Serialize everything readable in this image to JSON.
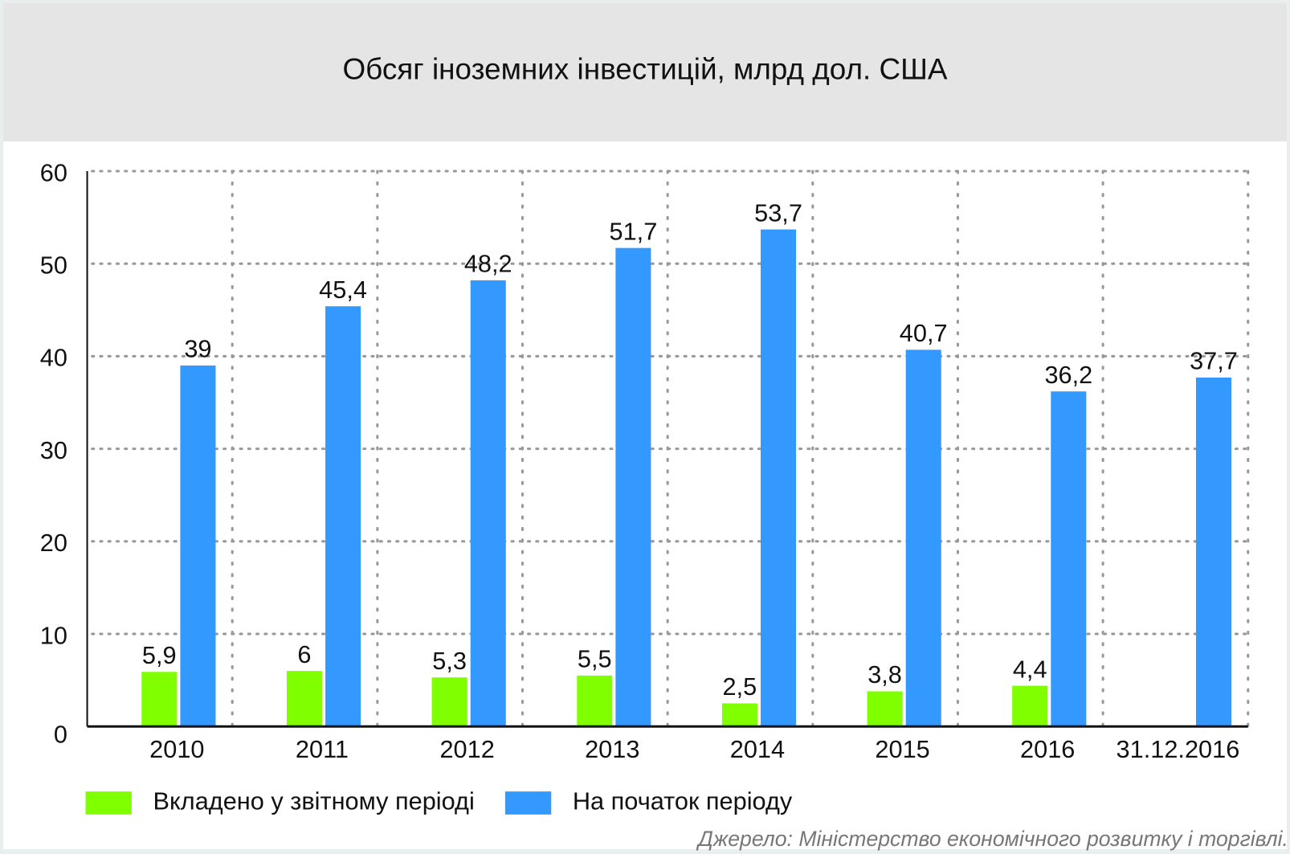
{
  "chart_data": {
    "type": "bar",
    "title": "Обсяг іноземних інвестицій, млрд дол. США",
    "categories": [
      "2010",
      "2011",
      "2012",
      "2013",
      "2014",
      "2015",
      "2016",
      "31.12.2016"
    ],
    "series": [
      {
        "name": "Вкладено у звітному періоді",
        "color": "#80ff00",
        "values": [
          5.9,
          6,
          5.3,
          5.5,
          2.5,
          3.8,
          4.4,
          null
        ],
        "labels": [
          "5,9",
          "6",
          "5,3",
          "5,5",
          "2,5",
          "3,8",
          "4,4",
          ""
        ]
      },
      {
        "name": "На початок періоду",
        "color": "#3399ff",
        "values": [
          39,
          45.4,
          48.2,
          51.7,
          53.7,
          40.7,
          36.2,
          37.7
        ],
        "labels": [
          "39",
          "45,4",
          "48,2",
          "51,7",
          "53,7",
          "40,7",
          "36,2",
          "37,7"
        ]
      }
    ],
    "ylim": [
      0,
      60
    ],
    "yticks": [
      "0",
      "10",
      "20",
      "30",
      "40",
      "50",
      "60"
    ],
    "grid": true,
    "legend": "bottom-left",
    "xlabel": "",
    "ylabel": ""
  },
  "source": "Джерело: Міністерство економічного розвитку і торгівлі."
}
